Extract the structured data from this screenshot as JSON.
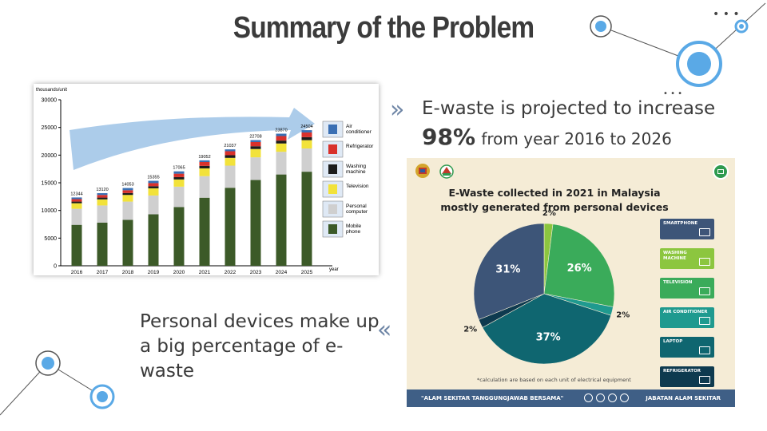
{
  "slide": {
    "title": "Summary of the Problem",
    "point1": {
      "line1": "E-waste is projected to increase",
      "highlight": "98%",
      "rest": "from year 2016 to 2026"
    },
    "point2": "Personal devices make up a big percentage of e-waste",
    "chevron_right": "»",
    "chevron_left": "«"
  },
  "chart_data": [
    {
      "type": "bar",
      "ylabel": "thousands/unit",
      "xlabel": "year",
      "categories": [
        "2016",
        "2017",
        "2018",
        "2019",
        "2020",
        "2021",
        "2022",
        "2023",
        "2024",
        "2025"
      ],
      "totals": [
        12344,
        13120,
        14053,
        15355,
        17065,
        19052,
        21037,
        22708,
        23870,
        24504
      ],
      "ylim": [
        0,
        30000
      ],
      "yticks": [
        0,
        5000,
        10000,
        15000,
        20000,
        25000,
        30000
      ],
      "series": [
        {
          "name": "Mobile phone",
          "color": "#3c5a28",
          "values": [
            7400,
            7800,
            8300,
            9300,
            10600,
            12300,
            14100,
            15500,
            16500,
            17000
          ]
        },
        {
          "name": "Personal computer",
          "color": "#cfcfcf",
          "values": [
            2900,
            3100,
            3300,
            3400,
            3700,
            3900,
            4000,
            4100,
            4100,
            4200
          ]
        },
        {
          "name": "Television",
          "color": "#f2e23a",
          "values": [
            1000,
            1100,
            1200,
            1300,
            1300,
            1400,
            1400,
            1500,
            1500,
            1500
          ]
        },
        {
          "name": "Washing machine",
          "color": "#1c1c1c",
          "values": [
            300,
            320,
            350,
            380,
            420,
            450,
            480,
            500,
            520,
            540
          ]
        },
        {
          "name": "Refrigerator",
          "color": "#d9312b",
          "values": [
            450,
            480,
            500,
            560,
            620,
            700,
            720,
            760,
            820,
            850
          ]
        },
        {
          "name": "Air conditioner",
          "color": "#3a6fb3",
          "values": [
            294,
            320,
            403,
            415,
            425,
            302,
            337,
            348,
            430,
            414
          ]
        }
      ],
      "legend": [
        "Air conditioner",
        "Refrigerator",
        "Washing machine",
        "Television",
        "Personal computer",
        "Mobile phone"
      ],
      "legend_placement": "right",
      "grid": false
    },
    {
      "type": "pie",
      "title": "E-Waste collected in 2021 in Malaysia mostly generated from personal devices",
      "slices": [
        {
          "label": "2%",
          "value": 2,
          "color": "#8cc63f"
        },
        {
          "label": "26%",
          "value": 26,
          "color": "#3aab5a"
        },
        {
          "label": "2%",
          "value": 2,
          "color": "#1f9a8f"
        },
        {
          "label": "37%",
          "value": 37,
          "color": "#0f6670"
        },
        {
          "label": "2%",
          "value": 2,
          "color": "#0e3a4f"
        },
        {
          "label": "31%",
          "value": 31,
          "color": "#3d5578"
        }
      ],
      "legend": [
        {
          "label": "SMARTPHONE",
          "color": "#3d5578"
        },
        {
          "label": "WASHING MACHINE",
          "color": "#8cc63f"
        },
        {
          "label": "TELEVISION",
          "color": "#3aab5a"
        },
        {
          "label": "AIR CONDITIONER",
          "color": "#1f9a8f"
        },
        {
          "label": "LAPTOP",
          "color": "#0f6670"
        },
        {
          "label": "REFRIGERATOR",
          "color": "#0e3a4f"
        }
      ],
      "footnote": "*calculation are based on each unit of electrical equipment",
      "footer_left": "\"ALAM SEKITAR TANGGUNGJAWAB BERSAMA\"",
      "footer_right": "JABATAN ALAM SEKITAR"
    }
  ]
}
